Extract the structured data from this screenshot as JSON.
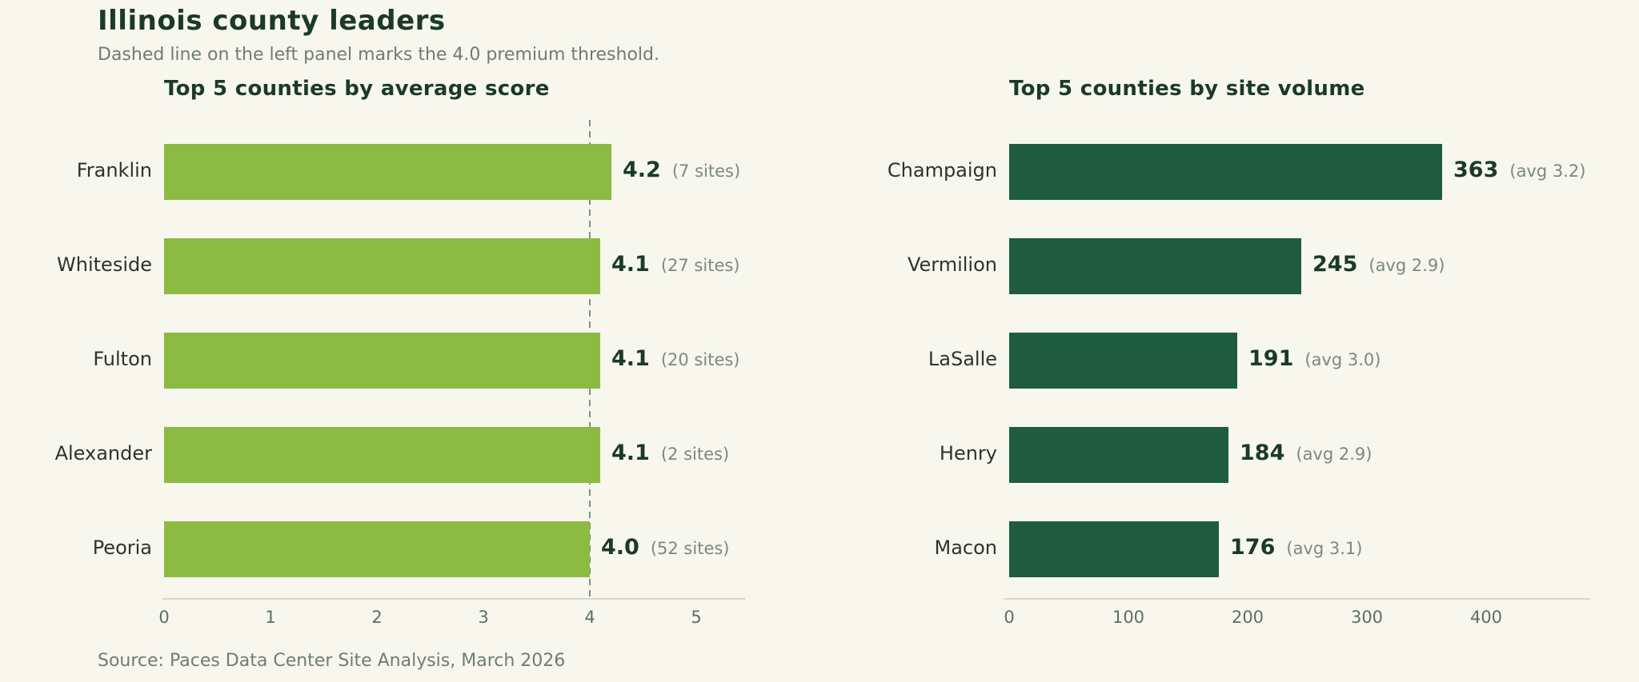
{
  "header": {
    "title": "Illinois county leaders",
    "subtitle": "Dashed line on the left panel marks the 4.0 premium threshold."
  },
  "source_note": "Source: Paces Data Center Site Analysis, March 2026",
  "colors": {
    "background": "#f7f7ee",
    "title_text": "#1b3a28",
    "muted_text": "#6f7d71",
    "category_text": "#2c342d",
    "value_text": "#1b3a28",
    "annotation_text": "#7b897e",
    "tick_text": "#5e6e62",
    "axis_line": "#d7d7cd",
    "threshold_line": "#7e8f85",
    "left_bar": "#8cba43",
    "right_bar": "#1f5b40"
  },
  "chart_data": [
    {
      "type": "bar",
      "orientation": "horizontal",
      "title": "Top 5 counties by average score",
      "categories": [
        "Franklin",
        "Whiteside",
        "Fulton",
        "Alexander",
        "Peoria"
      ],
      "values": [
        4.2,
        4.1,
        4.1,
        4.1,
        4.0
      ],
      "value_labels": [
        "4.2",
        "4.1",
        "4.1",
        "4.1",
        "4.0"
      ],
      "annotations": [
        "(7 sites)",
        "(27 sites)",
        "(20 sites)",
        "(2 sites)",
        "(52 sites)"
      ],
      "x_ticks": [
        0,
        1,
        2,
        3,
        4,
        5
      ],
      "xlim": [
        0,
        5.5
      ],
      "grid": false,
      "bar_color": "#8cba43",
      "reference_line": {
        "value": 4.0,
        "style": "dashed",
        "meaning": "4.0 premium threshold"
      }
    },
    {
      "type": "bar",
      "orientation": "horizontal",
      "title": "Top 5 counties by site volume",
      "categories": [
        "Champaign",
        "Vermilion",
        "LaSalle",
        "Henry",
        "Macon"
      ],
      "values": [
        363,
        245,
        191,
        184,
        176
      ],
      "value_labels": [
        "363",
        "245",
        "191",
        "184",
        "176"
      ],
      "annotations": [
        "(avg 3.2)",
        "(avg 2.9)",
        "(avg 3.0)",
        "(avg 2.9)",
        "(avg 3.1)"
      ],
      "x_ticks": [
        0,
        100,
        200,
        300,
        400
      ],
      "xlim": [
        0,
        492
      ],
      "grid": false,
      "bar_color": "#1f5b40",
      "reference_line": null
    }
  ]
}
